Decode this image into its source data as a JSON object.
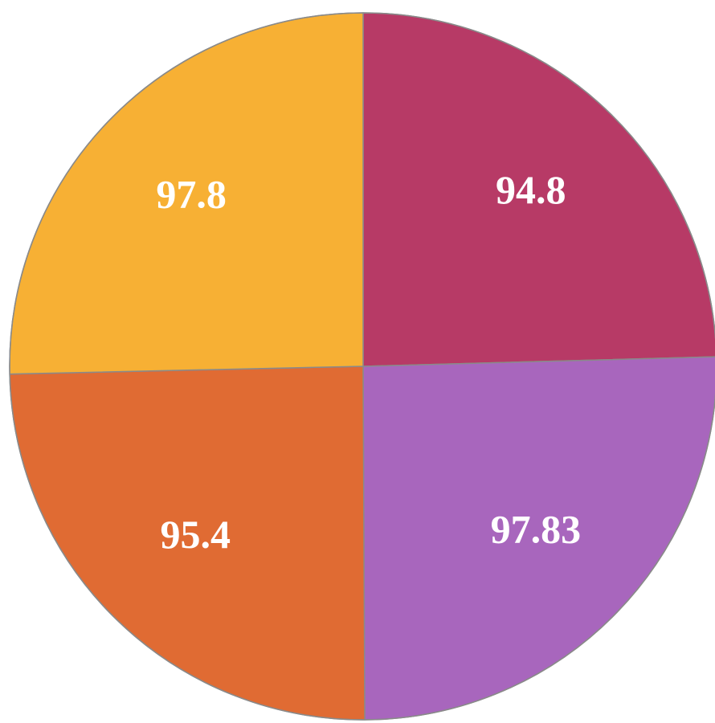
{
  "chart_data": {
    "type": "pie",
    "title": "",
    "slices": [
      {
        "label": "94.8",
        "value": 94.8,
        "color": "#B73A66"
      },
      {
        "label": "97.83",
        "value": 97.83,
        "color": "#A866BD"
      },
      {
        "label": "95.4",
        "value": 95.4,
        "color": "#E06B33"
      },
      {
        "label": "97.8",
        "value": 97.8,
        "color": "#F7B034"
      }
    ],
    "start": "top",
    "direction": "clockwise",
    "legend": "none"
  },
  "colors": {
    "background": "#FFFFFF",
    "slice_border": "#8A8A8A",
    "label_text": "#FFFFFF"
  }
}
